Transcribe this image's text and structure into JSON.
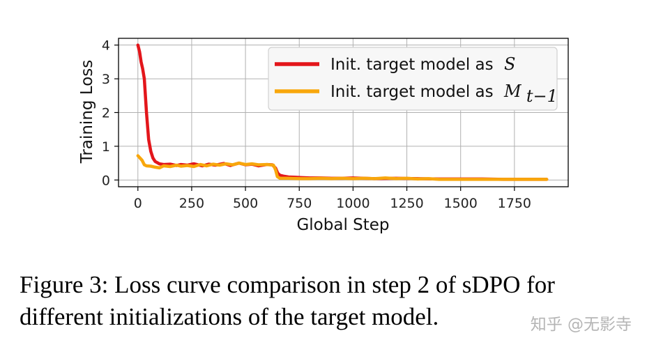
{
  "chart_data": {
    "type": "line",
    "xlabel": "Global Step",
    "ylabel": "Training Loss",
    "xlim": [
      -90,
      2000
    ],
    "ylim": [
      -0.2,
      4.2
    ],
    "xticks": [
      0,
      250,
      500,
      750,
      1000,
      1250,
      1500,
      1750
    ],
    "yticks": [
      0,
      1,
      2,
      3,
      4
    ],
    "grid": true,
    "legend_position": "top-right",
    "series": [
      {
        "name": "Init. target model as S",
        "label_text": "Init. target model as",
        "label_math": "S",
        "color": "#e3161b",
        "x": [
          0,
          8,
          15,
          22,
          30,
          40,
          50,
          60,
          70,
          80,
          100,
          120,
          150,
          180,
          200,
          230,
          260,
          300,
          330,
          360,
          400,
          430,
          470,
          500,
          530,
          560,
          600,
          625,
          640,
          650,
          660,
          680,
          700,
          730,
          760,
          800,
          850,
          900,
          950,
          1000,
          1050,
          1100,
          1200,
          1300,
          1400,
          1500,
          1600,
          1700,
          1800,
          1900
        ],
        "y": [
          4.0,
          3.8,
          3.5,
          3.3,
          3.0,
          2.0,
          1.2,
          0.85,
          0.65,
          0.55,
          0.48,
          0.46,
          0.47,
          0.43,
          0.46,
          0.44,
          0.48,
          0.42,
          0.47,
          0.44,
          0.49,
          0.43,
          0.5,
          0.45,
          0.47,
          0.42,
          0.46,
          0.45,
          0.35,
          0.2,
          0.14,
          0.11,
          0.09,
          0.08,
          0.07,
          0.06,
          0.06,
          0.05,
          0.05,
          0.06,
          0.05,
          0.04,
          0.05,
          0.04,
          0.03,
          0.03,
          0.03,
          0.02,
          0.02,
          0.02
        ]
      },
      {
        "name": "Init. target model as M_{t-1}",
        "label_text": "Init. target model as",
        "label_math": "M",
        "label_sub": "t−1",
        "color": "#f8a70c",
        "x": [
          0,
          10,
          20,
          30,
          40,
          60,
          80,
          100,
          120,
          150,
          180,
          200,
          230,
          260,
          290,
          320,
          350,
          380,
          410,
          440,
          470,
          500,
          530,
          560,
          600,
          630,
          640,
          648,
          660,
          700,
          750,
          800,
          850,
          900,
          950,
          1000,
          1050,
          1100,
          1150,
          1200,
          1250,
          1300,
          1350,
          1400,
          1500,
          1600,
          1700,
          1800,
          1900
        ],
        "y": [
          0.72,
          0.65,
          0.58,
          0.45,
          0.42,
          0.41,
          0.38,
          0.36,
          0.42,
          0.4,
          0.44,
          0.41,
          0.43,
          0.4,
          0.46,
          0.42,
          0.47,
          0.44,
          0.48,
          0.45,
          0.5,
          0.46,
          0.48,
          0.45,
          0.46,
          0.44,
          0.3,
          0.1,
          0.05,
          0.05,
          0.04,
          0.04,
          0.05,
          0.04,
          0.05,
          0.04,
          0.05,
          0.04,
          0.06,
          0.04,
          0.05,
          0.03,
          0.04,
          0.02,
          0.02,
          0.02,
          0.02,
          0.02,
          0.02
        ]
      }
    ]
  },
  "caption": "Figure 3: Loss curve comparison in step 2 of sDPO for different initializations of the target model.",
  "watermark": "知乎 @无影寺"
}
